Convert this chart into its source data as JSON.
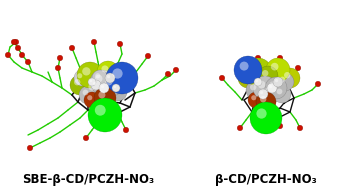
{
  "background_color": "#ffffff",
  "label_left": "SBE-β-CD/PCZH-NO₃",
  "label_right": "β-CD/PCZH-NO₃",
  "label_fontsize": 8.5,
  "label_fontweight": "bold",
  "label_color": "#000000",
  "fig_width": 3.58,
  "fig_height": 1.89,
  "dpi": 100,
  "green_stick": "#22cc00",
  "dark_stick": "#111111",
  "red_atom": "#cc1100",
  "green_atom": "#00ee00",
  "blue_atom": "#2255cc",
  "yellow_green": "#aacc00",
  "gray_atom": "#b0b0b0",
  "white_atom": "#e8e8e8",
  "dark_red_atom": "#882200"
}
